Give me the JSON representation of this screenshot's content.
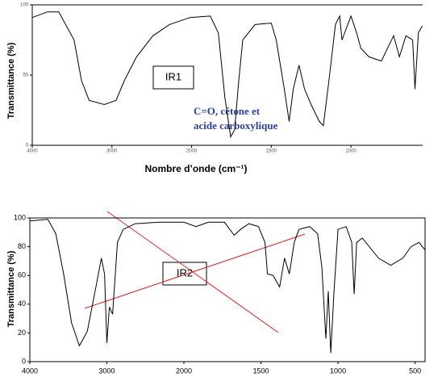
{
  "chart_data": [
    {
      "type": "line",
      "y_label": "Transmittance (%)",
      "x_label": "Nombre d’onde (cm⁻¹)",
      "xlim": [
        4000,
        550
      ],
      "ylim": [
        0,
        100
      ],
      "xticks": [
        4000,
        3000,
        2000,
        1500,
        1000
      ],
      "yticks": [
        0,
        50,
        100
      ],
      "color": "#000000",
      "x": [
        4000,
        3810,
        3667,
        3476,
        3381,
        3286,
        3095,
        2948,
        2845,
        2691,
        2485,
        2278,
        2021,
        1883,
        1832,
        1791,
        1755,
        1730,
        1704,
        1679,
        1602,
        1500,
        1469,
        1418,
        1388,
        1362,
        1326,
        1291,
        1250,
        1199,
        1173,
        1138,
        1097,
        1071,
        1056,
        1000,
        964,
        938,
        887,
        809,
        732,
        696,
        655,
        613,
        598,
        577,
        552
      ],
      "values": [
        91,
        95,
        95,
        75,
        46,
        32,
        29,
        32,
        46,
        63,
        78,
        86,
        91,
        92,
        80,
        34,
        6,
        11,
        46,
        75,
        86,
        87,
        75,
        40,
        17,
        40,
        57,
        40,
        29,
        17,
        14,
        46,
        86,
        92,
        75,
        92,
        80,
        69,
        63,
        60,
        78,
        63,
        78,
        75,
        40,
        80,
        85
      ],
      "annotations": [
        "IR1",
        "C=O, cétone et",
        "acide carboxylique"
      ]
    },
    {
      "type": "line",
      "y_label": "Transmittance (%)",
      "xlim": [
        4000,
        435
      ],
      "ylim": [
        0,
        100
      ],
      "xticks": [
        4000,
        3000,
        2000,
        1500,
        1000,
        500
      ],
      "yticks": [
        0,
        20,
        40,
        60,
        80,
        100
      ],
      "color": "#000000",
      "x": [
        4000,
        3765,
        3663,
        3561,
        3459,
        3357,
        3255,
        3153,
        3071,
        3031,
        3000,
        2968,
        2926,
        2863,
        2789,
        2632,
        2316,
        2000,
        1921,
        1842,
        1737,
        1674,
        1632,
        1579,
        1516,
        1474,
        1458,
        1421,
        1379,
        1347,
        1316,
        1284,
        1253,
        1184,
        1132,
        1105,
        1079,
        1063,
        1047,
        1026,
        1000,
        947,
        911,
        895,
        879,
        842,
        737,
        658,
        579,
        526,
        474,
        437
      ],
      "values": [
        98,
        99,
        89,
        61,
        27,
        11,
        21,
        49,
        72,
        61,
        13,
        38,
        33,
        83,
        92,
        96,
        97,
        97,
        94,
        97,
        97,
        88,
        92,
        96,
        94,
        83,
        61,
        60,
        52,
        72,
        61,
        83,
        92,
        94,
        89,
        66,
        16,
        49,
        6,
        49,
        92,
        94,
        83,
        47,
        83,
        86,
        72,
        67,
        72,
        80,
        83,
        78
      ],
      "annotations": [
        "IR2"
      ]
    }
  ]
}
